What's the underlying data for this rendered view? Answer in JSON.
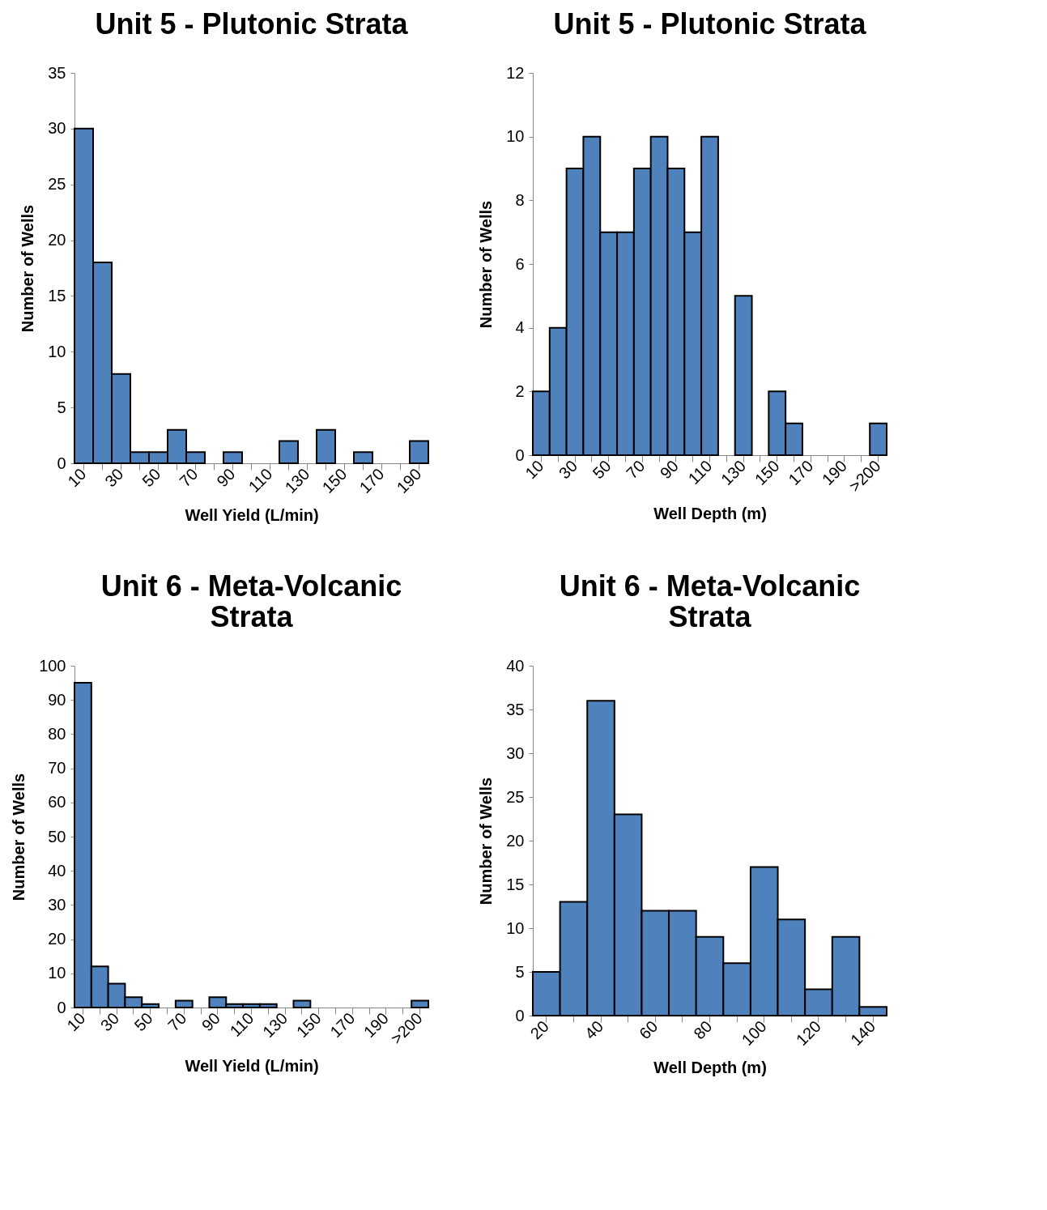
{
  "chart_data": [
    {
      "type": "bar",
      "title": "Unit 5 - Plutonic Strata",
      "xlabel": "Well Yield (L/min)",
      "ylabel": "Number of Wells",
      "categories": [
        "10",
        null,
        "30",
        null,
        "50",
        null,
        "70",
        null,
        "90",
        null,
        "110",
        null,
        "130",
        null,
        "150",
        null,
        "170",
        null,
        "190"
      ],
      "values": [
        30,
        18,
        8,
        1,
        1,
        3,
        1,
        0,
        1,
        0,
        0,
        2,
        0,
        3,
        0,
        1,
        0,
        0,
        2
      ],
      "color": "#4f81bd",
      "ylim": [
        0,
        35
      ],
      "yticks": [
        0,
        5,
        10,
        15,
        20,
        25,
        30,
        35
      ],
      "grid": false
    },
    {
      "type": "bar",
      "title": "Unit 5 - Plutonic Strata",
      "xlabel": "Well Depth (m)",
      "ylabel": "Number of Wells",
      "categories": [
        "10",
        null,
        "30",
        null,
        "50",
        null,
        "70",
        null,
        "90",
        null,
        "110",
        null,
        "130",
        null,
        "150",
        null,
        "170",
        null,
        "190",
        null,
        ">200"
      ],
      "values": [
        2,
        4,
        9,
        10,
        7,
        7,
        9,
        10,
        9,
        7,
        10,
        0,
        5,
        0,
        2,
        1,
        0,
        0,
        0,
        0,
        1
      ],
      "color": "#4f81bd",
      "ylim": [
        0,
        12
      ],
      "yticks": [
        0,
        2,
        4,
        6,
        8,
        10,
        12
      ],
      "grid": false
    },
    {
      "type": "bar",
      "title": "Unit 6 - Meta-Volcanic Strata",
      "xlabel": "Well Yield (L/min)",
      "ylabel": "Number of Wells",
      "categories": [
        "10",
        null,
        "30",
        null,
        "50",
        null,
        "70",
        null,
        "90",
        null,
        "110",
        null,
        "130",
        null,
        "150",
        null,
        "170",
        null,
        "190",
        null,
        ">200"
      ],
      "values": [
        95,
        12,
        7,
        3,
        1,
        0,
        2,
        0,
        3,
        1,
        1,
        1,
        0,
        2,
        0,
        0,
        0,
        0,
        0,
        0,
        2
      ],
      "color": "#4f81bd",
      "ylim": [
        0,
        100
      ],
      "yticks": [
        0,
        10,
        20,
        30,
        40,
        50,
        60,
        70,
        80,
        90,
        100
      ],
      "grid": false
    },
    {
      "type": "bar",
      "title": "Unit 6 - Meta-Volcanic Strata",
      "xlabel": "Well Depth (m)",
      "ylabel": "Number of Wells",
      "categories": [
        "20",
        null,
        "40",
        null,
        "60",
        null,
        "80",
        null,
        "100",
        null,
        "120",
        null,
        "140"
      ],
      "values": [
        5,
        13,
        36,
        23,
        12,
        12,
        9,
        6,
        17,
        11,
        3,
        9,
        1
      ],
      "color": "#4f81bd",
      "ylim": [
        0,
        40
      ],
      "yticks": [
        0,
        5,
        10,
        15,
        20,
        25,
        30,
        35,
        40
      ],
      "grid": false
    }
  ]
}
